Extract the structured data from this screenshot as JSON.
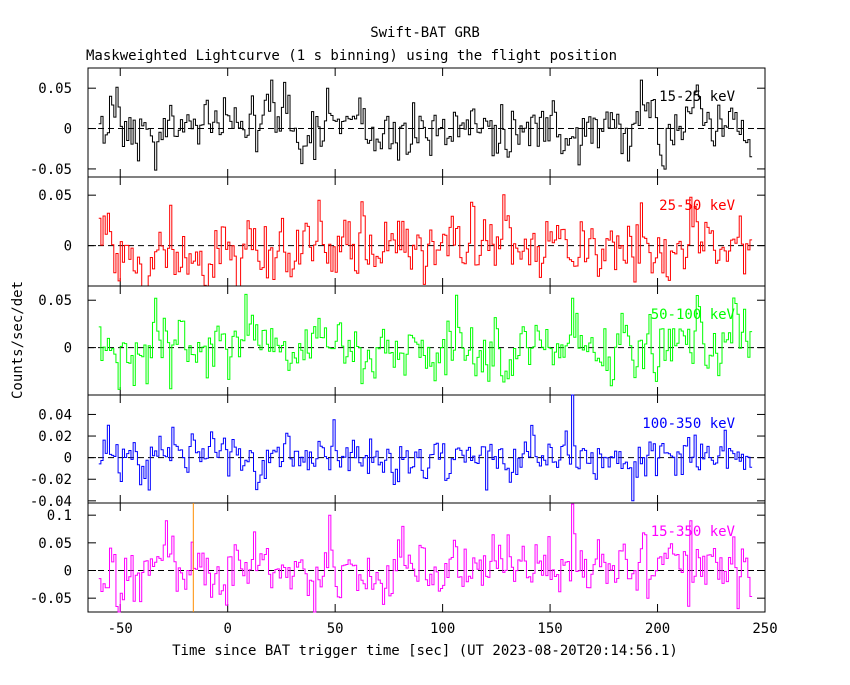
{
  "title": "Swift-BAT GRB",
  "subtitle": "Maskweighted Lightcurve (1 s binning) using the flight position",
  "xlabel": "Time since BAT trigger time [sec] (UT 2023-08-20T20:14:56.1)",
  "ylabel": "Counts/sec/det",
  "trigger_marker": {
    "x": -16,
    "color": "#ff8c00"
  },
  "chart_data": [
    {
      "type": "line",
      "series_name": "15-25 keV",
      "color": "#000000",
      "xlim": [
        -65,
        250
      ],
      "ylim": [
        -0.06,
        0.075
      ],
      "yticks": [
        -0.05,
        0,
        0.05
      ],
      "ytick_labels": [
        "-0.05",
        "0",
        "0.05"
      ],
      "x_range": [
        -60,
        243
      ],
      "amplitude": 0.017,
      "peaks": [
        [
          -55,
          0.04
        ],
        [
          -42,
          -0.04
        ],
        [
          20,
          0.06
        ],
        [
          46,
          0.05
        ],
        [
          163,
          -0.045
        ],
        [
          192,
          0.06
        ],
        [
          243,
          -0.035
        ]
      ]
    },
    {
      "type": "line",
      "series_name": "25-50 keV",
      "color": "#ff0000",
      "xlim": [
        -65,
        250
      ],
      "ylim": [
        -0.04,
        0.068
      ],
      "yticks": [
        0,
        0.05
      ],
      "ytick_labels": [
        "0",
        "0.05"
      ],
      "x_range": [
        -60,
        243
      ],
      "amplitude": 0.018,
      "peaks": [
        [
          -37,
          -0.03
        ],
        [
          -27,
          0.04
        ],
        [
          18,
          -0.032
        ],
        [
          42,
          0.045
        ],
        [
          215,
          0.048
        ],
        [
          240,
          -0.028
        ]
      ]
    },
    {
      "type": "line",
      "series_name": "50-100 keV",
      "color": "#00ff00",
      "xlim": [
        -65,
        250
      ],
      "ylim": [
        -0.05,
        0.065
      ],
      "yticks": [
        0,
        0.05
      ],
      "ytick_labels": [
        "0",
        "0.05"
      ],
      "x_range": [
        -60,
        243
      ],
      "amplitude": 0.016,
      "peaks": [
        [
          -34,
          0.052
        ],
        [
          -44,
          -0.04
        ],
        [
          62,
          -0.038
        ],
        [
          160,
          0.052
        ],
        [
          218,
          0.055
        ]
      ]
    },
    {
      "type": "line",
      "series_name": "100-350 keV",
      "color": "#0000ff",
      "xlim": [
        -65,
        250
      ],
      "ylim": [
        -0.042,
        0.058
      ],
      "yticks": [
        -0.04,
        -0.02,
        0,
        0.02,
        0.04
      ],
      "ytick_labels": [
        "-0.04",
        "-0.02",
        "0",
        "0.02",
        "0.04"
      ],
      "x_range": [
        -60,
        243
      ],
      "amplitude": 0.011,
      "peaks": [
        [
          -56,
          0.03
        ],
        [
          49,
          0.035
        ],
        [
          160,
          0.058
        ],
        [
          -37,
          -0.03
        ],
        [
          188,
          -0.04
        ],
        [
          120,
          -0.03
        ]
      ]
    },
    {
      "type": "line",
      "series_name": "15-350 keV",
      "color": "#ff00ff",
      "xlim": [
        -65,
        250
      ],
      "ylim": [
        -0.075,
        0.122
      ],
      "yticks": [
        -0.05,
        0,
        0.05,
        0.1
      ],
      "ytick_labels": [
        "-0.05",
        "0",
        "0.05",
        "0.1"
      ],
      "x_range": [
        -60,
        243
      ],
      "amplitude": 0.026,
      "peaks": [
        [
          -52,
          -0.065
        ],
        [
          47,
          0.1
        ],
        [
          160,
          0.12
        ],
        [
          -29,
          0.09
        ],
        [
          215,
          0.09
        ],
        [
          195,
          -0.05
        ]
      ]
    }
  ],
  "x_axis": {
    "ticks": [
      -50,
      0,
      50,
      100,
      150,
      200,
      250
    ],
    "tick_labels": [
      "-50",
      "0",
      "50",
      "100",
      "150",
      "200",
      "250"
    ]
  }
}
